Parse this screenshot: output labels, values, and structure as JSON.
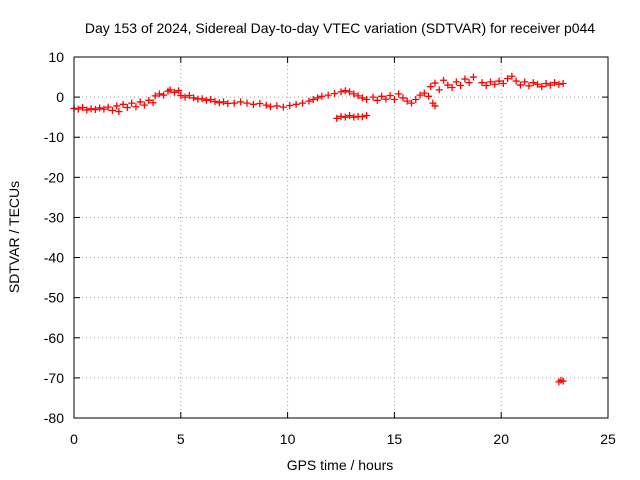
{
  "chart_data": {
    "type": "scatter",
    "title": "Day 153 of 2024, Sidereal Day-to-day VTEC variation (SDTVAR) for receiver p044",
    "xlabel": "GPS time / hours",
    "ylabel": "SDTVAR / TECUs",
    "xlim": [
      0,
      25
    ],
    "ylim": [
      -80,
      10
    ],
    "xticks": [
      "0",
      "5",
      "10",
      "15",
      "20",
      "25"
    ],
    "yticks": [
      "10",
      "0",
      "-10",
      "-20",
      "-30",
      "-40",
      "-50",
      "-60",
      "-70",
      "-80"
    ],
    "grid": true,
    "marker": "plus",
    "color": "#ff0000",
    "series": [
      {
        "name": "SDTVAR",
        "points": [
          [
            0.0,
            -2.8
          ],
          [
            0.2,
            -3.0
          ],
          [
            0.4,
            -2.6
          ],
          [
            0.6,
            -3.2
          ],
          [
            0.8,
            -2.9
          ],
          [
            1.0,
            -3.1
          ],
          [
            1.2,
            -2.7
          ],
          [
            1.4,
            -3.0
          ],
          [
            1.6,
            -2.5
          ],
          [
            1.8,
            -3.3
          ],
          [
            2.0,
            -2.2
          ],
          [
            2.1,
            -3.6
          ],
          [
            2.3,
            -1.8
          ],
          [
            2.5,
            -2.6
          ],
          [
            2.7,
            -1.5
          ],
          [
            2.9,
            -2.4
          ],
          [
            3.1,
            -1.2
          ],
          [
            3.3,
            -2.0
          ],
          [
            3.5,
            -0.8
          ],
          [
            3.7,
            -1.4
          ],
          [
            3.8,
            0.3
          ],
          [
            4.0,
            0.8
          ],
          [
            4.2,
            0.5
          ],
          [
            4.4,
            1.5
          ],
          [
            4.5,
            1.8
          ],
          [
            4.7,
            1.2
          ],
          [
            4.9,
            1.6
          ],
          [
            5.0,
            0.4
          ],
          [
            5.2,
            0.0
          ],
          [
            5.4,
            0.4
          ],
          [
            5.6,
            -0.2
          ],
          [
            5.8,
            -0.5
          ],
          [
            6.0,
            -0.4
          ],
          [
            6.2,
            -0.8
          ],
          [
            6.4,
            -0.6
          ],
          [
            6.6,
            -1.1
          ],
          [
            6.8,
            -1.4
          ],
          [
            7.0,
            -1.2
          ],
          [
            7.2,
            -1.6
          ],
          [
            7.5,
            -1.5
          ],
          [
            7.8,
            -1.2
          ],
          [
            8.1,
            -1.5
          ],
          [
            8.4,
            -1.8
          ],
          [
            8.7,
            -1.6
          ],
          [
            9.0,
            -2.0
          ],
          [
            9.2,
            -2.4
          ],
          [
            9.5,
            -2.2
          ],
          [
            9.8,
            -2.5
          ],
          [
            10.1,
            -2.1
          ],
          [
            10.4,
            -1.8
          ],
          [
            10.7,
            -1.5
          ],
          [
            11.0,
            -1.0
          ],
          [
            11.2,
            -0.6
          ],
          [
            11.4,
            -0.2
          ],
          [
            11.6,
            0.2
          ],
          [
            11.9,
            0.5
          ],
          [
            12.2,
            0.9
          ],
          [
            12.5,
            1.3
          ],
          [
            12.7,
            1.6
          ],
          [
            12.9,
            1.3
          ],
          [
            13.1,
            0.8
          ],
          [
            13.3,
            0.3
          ],
          [
            13.5,
            -0.2
          ],
          [
            13.7,
            -0.6
          ],
          [
            12.3,
            -5.3
          ],
          [
            12.5,
            -4.8
          ],
          [
            12.7,
            -5.0
          ],
          [
            12.9,
            -4.6
          ],
          [
            13.1,
            -5.0
          ],
          [
            13.3,
            -4.8
          ],
          [
            13.5,
            -4.9
          ],
          [
            13.7,
            -4.6
          ],
          [
            14.0,
            0.0
          ],
          [
            14.2,
            -0.8
          ],
          [
            14.4,
            0.2
          ],
          [
            14.6,
            -0.5
          ],
          [
            14.8,
            0.4
          ],
          [
            15.0,
            -0.6
          ],
          [
            15.2,
            0.8
          ],
          [
            15.4,
            -0.2
          ],
          [
            15.6,
            -1.0
          ],
          [
            15.8,
            -1.5
          ],
          [
            16.0,
            -0.6
          ],
          [
            16.2,
            0.5
          ],
          [
            16.4,
            1.0
          ],
          [
            16.6,
            0.2
          ],
          [
            16.8,
            -1.5
          ],
          [
            16.9,
            -2.2
          ],
          [
            16.7,
            2.6
          ],
          [
            16.9,
            3.5
          ],
          [
            17.1,
            1.8
          ],
          [
            17.3,
            4.2
          ],
          [
            17.5,
            3.0
          ],
          [
            17.7,
            2.4
          ],
          [
            17.9,
            3.8
          ],
          [
            18.1,
            2.9
          ],
          [
            18.3,
            4.5
          ],
          [
            18.5,
            3.6
          ],
          [
            18.7,
            5.0
          ],
          [
            19.1,
            3.6
          ],
          [
            19.3,
            2.9
          ],
          [
            19.5,
            3.8
          ],
          [
            19.7,
            3.2
          ],
          [
            19.9,
            4.0
          ],
          [
            20.1,
            3.4
          ],
          [
            20.3,
            4.6
          ],
          [
            20.5,
            5.2
          ],
          [
            20.7,
            4.0
          ],
          [
            20.9,
            3.0
          ],
          [
            21.1,
            3.8
          ],
          [
            21.3,
            2.8
          ],
          [
            21.5,
            3.6
          ],
          [
            21.7,
            3.2
          ],
          [
            21.9,
            2.6
          ],
          [
            22.1,
            3.4
          ],
          [
            22.3,
            3.0
          ],
          [
            22.5,
            3.6
          ],
          [
            22.7,
            3.2
          ],
          [
            22.9,
            3.4
          ],
          [
            22.7,
            -71.0
          ],
          [
            22.8,
            -70.6
          ],
          [
            22.9,
            -70.8
          ]
        ]
      }
    ]
  }
}
